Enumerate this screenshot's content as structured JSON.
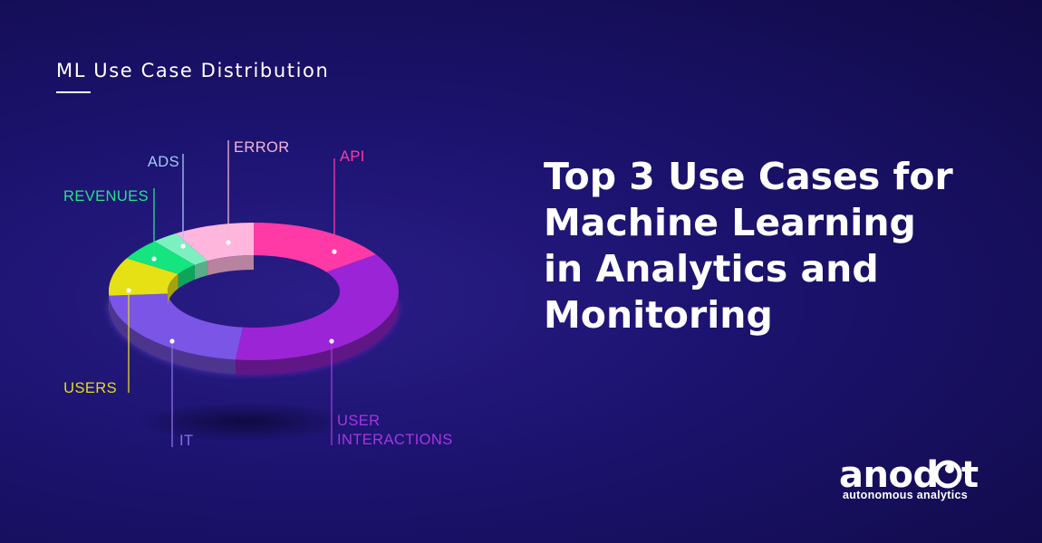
{
  "subtitle": "ML Use Case Distribution",
  "headline": [
    "Top 3 Use Cases for",
    "Machine Learning",
    "in Analytics and",
    "Monitoring"
  ],
  "brand": {
    "name": "anodot",
    "tagline": "autonomous analytics"
  },
  "chart_data": {
    "type": "pie",
    "title": "ML Use Case Distribution",
    "slices": [
      {
        "label": "API",
        "value": 16.0,
        "color": "#ff3aa6"
      },
      {
        "label": "USER INTERACTIONS",
        "value": 36.0,
        "color": "#9b24d6"
      },
      {
        "label": "IT",
        "value": 22.0,
        "color": "#7a55e6"
      },
      {
        "label": "USERS",
        "value": 9.0,
        "color": "#e6e114"
      },
      {
        "label": "REVENUES",
        "value": 5.0,
        "color": "#14e57e"
      },
      {
        "label": "ADS",
        "value": 3.0,
        "color": "#7df0c0"
      },
      {
        "label": "ERROR",
        "value": 9.0,
        "color": "#ffb6dc"
      }
    ],
    "label_colors": {
      "API": "#ff3aa6",
      "USER INTERACTIONS": "#a437e0",
      "IT": "#8870ea",
      "USERS": "#e0dc22",
      "REVENUES": "#29e08e",
      "ADS": "#a5c9f2",
      "ERROR": "#f2b6d8"
    }
  }
}
